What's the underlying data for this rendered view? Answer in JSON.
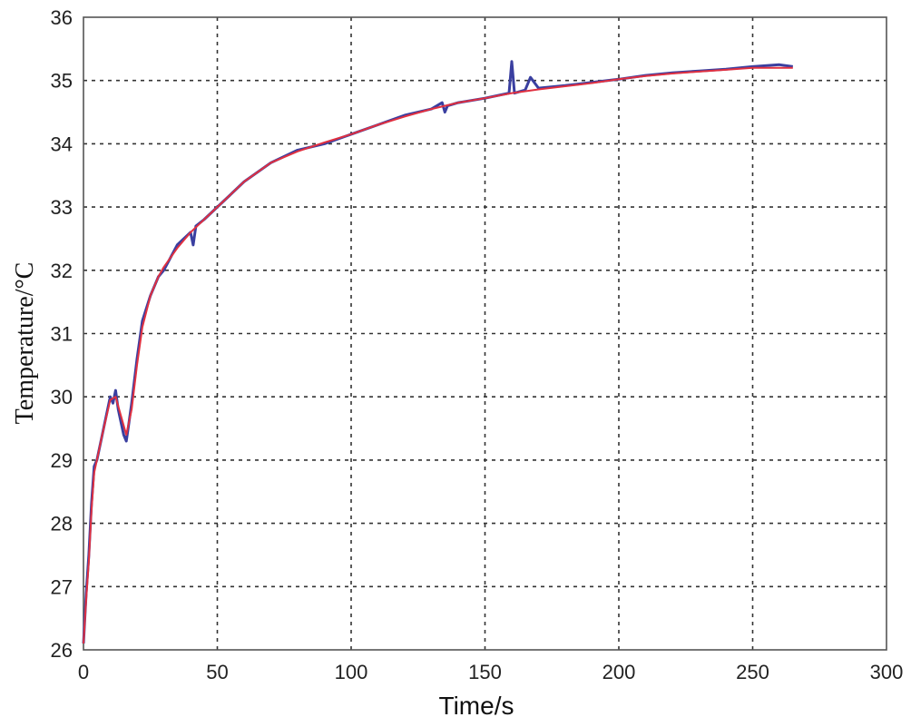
{
  "chart_data": {
    "type": "line",
    "xlabel": "Time/s",
    "ylabel": "Temperature/°C",
    "xlim": [
      0,
      300
    ],
    "ylim": [
      26,
      36
    ],
    "x_ticks": [
      "0",
      "50",
      "100",
      "150",
      "200",
      "250",
      "300"
    ],
    "y_ticks": [
      "26",
      "27",
      "28",
      "29",
      "30",
      "31",
      "32",
      "33",
      "34",
      "35",
      "36"
    ],
    "grid": true,
    "series": [
      {
        "color": "#3a3fa0",
        "x": [
          0,
          1,
          2,
          3,
          4,
          5,
          7,
          10,
          11,
          12,
          13,
          14,
          15,
          16,
          17,
          18,
          20,
          22,
          25,
          28,
          30,
          35,
          40,
          41,
          42,
          45,
          50,
          55,
          60,
          70,
          80,
          90,
          100,
          110,
          120,
          130,
          134,
          135,
          136,
          140,
          150,
          159,
          160,
          161,
          165,
          167,
          170,
          180,
          190,
          200,
          210,
          220,
          230,
          240,
          250,
          260,
          265
        ],
        "y": [
          26.1,
          26.9,
          27.5,
          28.3,
          28.9,
          29.0,
          29.4,
          30.0,
          29.9,
          30.1,
          29.8,
          29.6,
          29.4,
          29.3,
          29.6,
          29.9,
          30.6,
          31.2,
          31.6,
          31.9,
          32.0,
          32.4,
          32.6,
          32.4,
          32.7,
          32.8,
          33.0,
          33.2,
          33.4,
          33.7,
          33.9,
          34.0,
          34.15,
          34.3,
          34.45,
          34.55,
          34.65,
          34.5,
          34.6,
          34.65,
          34.72,
          34.8,
          35.3,
          34.8,
          34.85,
          35.05,
          34.88,
          34.92,
          34.97,
          35.02,
          35.08,
          35.12,
          35.15,
          35.18,
          35.22,
          35.25,
          35.22
        ]
      },
      {
        "color": "#e03040",
        "x": [
          0,
          1,
          2,
          3,
          4,
          5,
          7,
          10,
          12,
          14,
          16,
          18,
          20,
          22,
          25,
          28,
          30,
          35,
          40,
          45,
          50,
          55,
          60,
          70,
          80,
          90,
          100,
          110,
          120,
          130,
          140,
          150,
          160,
          170,
          180,
          190,
          200,
          210,
          220,
          230,
          240,
          250,
          260,
          265
        ],
        "y": [
          26.1,
          26.8,
          27.4,
          28.2,
          28.8,
          29.0,
          29.4,
          29.95,
          30.0,
          29.7,
          29.4,
          29.8,
          30.5,
          31.1,
          31.6,
          31.9,
          32.05,
          32.35,
          32.6,
          32.8,
          33.0,
          33.2,
          33.4,
          33.7,
          33.88,
          34.02,
          34.15,
          34.3,
          34.43,
          34.55,
          34.65,
          34.72,
          34.8,
          34.86,
          34.91,
          34.96,
          35.02,
          35.07,
          35.11,
          35.14,
          35.17,
          35.2,
          35.2,
          35.2
        ]
      }
    ]
  }
}
